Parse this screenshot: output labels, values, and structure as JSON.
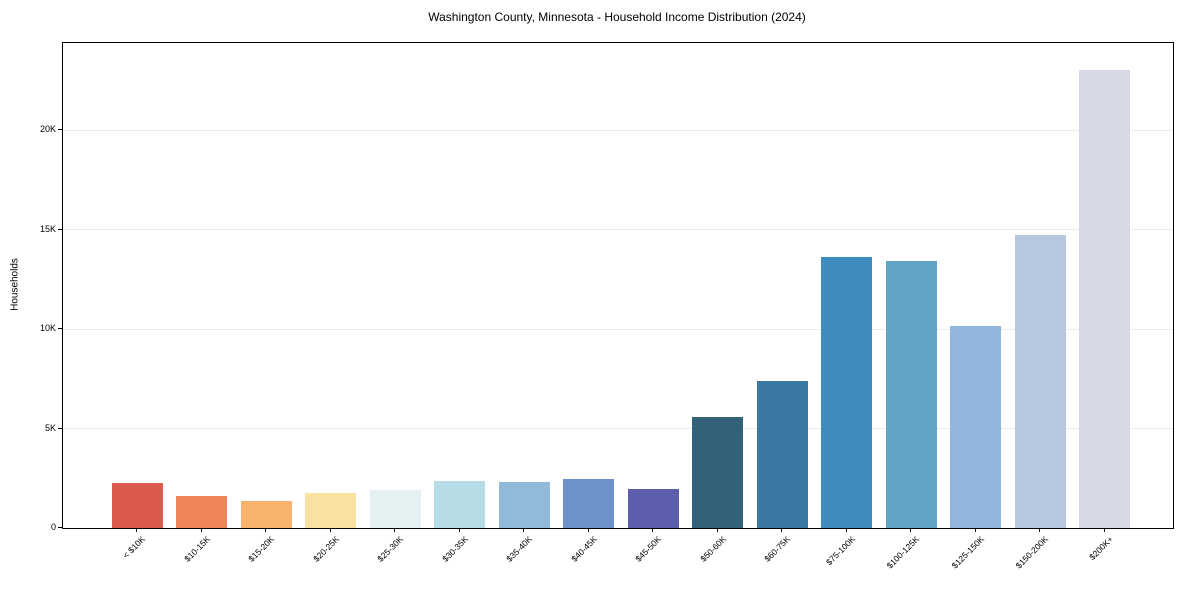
{
  "title": "Washington County, Minnesota - Household Income Distribution (2024)",
  "chart_data": {
    "type": "bar",
    "title": "Washington County, Minnesota - Household Income Distribution (2024)",
    "xlabel": "",
    "ylabel": "Households",
    "categories": [
      "< $10K",
      "$10-15K",
      "$15-20K",
      "$20-25K",
      "$25-30K",
      "$30-35K",
      "$35-40K",
      "$40-45K",
      "$45-50K",
      "$50-60K",
      "$60-75K",
      "$75-100K",
      "$100-125K",
      "$125-150K",
      "$150-200K",
      "$200K+"
    ],
    "values": [
      2270,
      1610,
      1360,
      1770,
      1900,
      2340,
      2330,
      2450,
      1950,
      5580,
      7400,
      13650,
      13430,
      10150,
      14720,
      23040
    ],
    "bar_colors": [
      "#da5a50",
      "#ef8459",
      "#f8b26d",
      "#fbe1a0",
      "#e4f0f1",
      "#b6dce5",
      "#90b9da",
      "#6d92c7",
      "#5c5dac",
      "#34617a",
      "#3979a1",
      "#3d8bbf",
      "#61a4c6",
      "#90b7db",
      "#b8c7e0",
      "#d7d8e6"
    ],
    "ylim": [
      0,
      24400
    ],
    "yticks": [
      {
        "value": 0,
        "label": "0"
      },
      {
        "value": 5000,
        "label": "5K"
      },
      {
        "value": 10000,
        "label": "10K"
      },
      {
        "value": 15000,
        "label": "15K"
      },
      {
        "value": 20000,
        "label": "20K"
      }
    ],
    "grid": "horizontal",
    "legend": "none"
  }
}
